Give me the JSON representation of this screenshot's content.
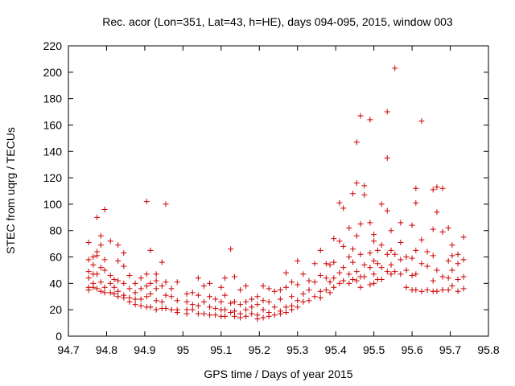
{
  "chart_data": {
    "type": "scatter",
    "title": "Rec. acor (Lon=351, Lat=43, h=HE), days 094-095, 2015, window 003",
    "xlabel": "GPS time / Days of year 2015",
    "ylabel": "STEC from uqrg / TECUs",
    "xlim": [
      94.7,
      95.8
    ],
    "ylim": [
      0,
      220
    ],
    "xticks": [
      "94.7",
      "94.8",
      "94.9",
      "95",
      "95.1",
      "95.2",
      "95.3",
      "95.4",
      "95.5",
      "95.6",
      "95.7",
      "95.8"
    ],
    "yticks": [
      "0",
      "20",
      "40",
      "60",
      "80",
      "100",
      "120",
      "140",
      "160",
      "180",
      "200",
      "220"
    ],
    "grid": false,
    "marker": "+",
    "color": "#cc0000",
    "series": [
      {
        "points": [
          [
            94.753,
            71
          ],
          [
            94.753,
            58
          ],
          [
            94.753,
            49
          ],
          [
            94.753,
            44
          ],
          [
            94.753,
            37
          ],
          [
            94.753,
            35
          ],
          [
            94.765,
            60
          ],
          [
            94.765,
            54
          ],
          [
            94.765,
            47
          ],
          [
            94.765,
            40
          ],
          [
            94.765,
            37
          ],
          [
            94.775,
            90
          ],
          [
            94.775,
            64
          ],
          [
            94.775,
            61
          ],
          [
            94.775,
            47
          ],
          [
            94.775,
            36
          ],
          [
            94.785,
            76
          ],
          [
            94.785,
            69
          ],
          [
            94.785,
            52
          ],
          [
            94.785,
            41
          ],
          [
            94.785,
            34
          ],
          [
            94.795,
            96
          ],
          [
            94.795,
            58
          ],
          [
            94.795,
            50
          ],
          [
            94.795,
            37
          ],
          [
            94.795,
            33
          ],
          [
            94.81,
            72
          ],
          [
            94.81,
            46
          ],
          [
            94.81,
            40
          ],
          [
            94.81,
            33
          ],
          [
            94.82,
            43
          ],
          [
            94.82,
            37
          ],
          [
            94.82,
            32
          ],
          [
            94.83,
            69
          ],
          [
            94.83,
            57
          ],
          [
            94.83,
            42
          ],
          [
            94.83,
            34
          ],
          [
            94.83,
            30
          ],
          [
            94.845,
            63
          ],
          [
            94.845,
            53
          ],
          [
            94.845,
            40
          ],
          [
            94.845,
            31
          ],
          [
            94.845,
            29
          ],
          [
            94.86,
            46
          ],
          [
            94.86,
            36
          ],
          [
            94.86,
            29
          ],
          [
            94.86,
            26
          ],
          [
            94.875,
            40
          ],
          [
            94.875,
            33
          ],
          [
            94.875,
            28
          ],
          [
            94.875,
            24
          ],
          [
            94.89,
            44
          ],
          [
            94.89,
            36
          ],
          [
            94.89,
            28
          ],
          [
            94.89,
            23
          ],
          [
            94.905,
            102
          ],
          [
            94.905,
            47
          ],
          [
            94.905,
            38
          ],
          [
            94.905,
            30
          ],
          [
            94.905,
            22
          ],
          [
            94.915,
            65
          ],
          [
            94.915,
            40
          ],
          [
            94.915,
            32
          ],
          [
            94.915,
            22
          ],
          [
            94.93,
            47
          ],
          [
            94.93,
            42
          ],
          [
            94.93,
            36
          ],
          [
            94.93,
            27
          ],
          [
            94.93,
            20
          ],
          [
            94.945,
            56
          ],
          [
            94.945,
            38
          ],
          [
            94.945,
            26
          ],
          [
            94.945,
            21
          ],
          [
            94.955,
            100
          ],
          [
            94.955,
            41
          ],
          [
            94.955,
            31
          ],
          [
            94.955,
            21
          ],
          [
            94.97,
            36
          ],
          [
            94.97,
            30
          ],
          [
            94.97,
            20
          ],
          [
            94.985,
            41
          ],
          [
            94.985,
            27
          ],
          [
            94.985,
            20
          ],
          [
            94.985,
            18
          ],
          [
            95.01,
            32
          ],
          [
            95.01,
            26
          ],
          [
            95.01,
            20
          ],
          [
            95.01,
            17
          ],
          [
            95.025,
            33
          ],
          [
            95.025,
            24
          ],
          [
            95.025,
            20
          ],
          [
            95.04,
            44
          ],
          [
            95.04,
            31
          ],
          [
            95.04,
            23
          ],
          [
            95.04,
            17
          ],
          [
            95.055,
            38
          ],
          [
            95.055,
            26
          ],
          [
            95.055,
            17
          ],
          [
            95.07,
            40
          ],
          [
            95.07,
            30
          ],
          [
            95.07,
            22
          ],
          [
            95.07,
            16
          ],
          [
            95.085,
            28
          ],
          [
            95.085,
            21
          ],
          [
            95.085,
            16
          ],
          [
            95.1,
            37
          ],
          [
            95.1,
            26
          ],
          [
            95.1,
            20
          ],
          [
            95.1,
            15
          ],
          [
            95.11,
            44
          ],
          [
            95.11,
            31
          ],
          [
            95.11,
            20
          ],
          [
            95.11,
            15
          ],
          [
            95.125,
            66
          ],
          [
            95.125,
            25
          ],
          [
            95.125,
            18
          ],
          [
            95.135,
            45
          ],
          [
            95.135,
            26
          ],
          [
            95.135,
            19
          ],
          [
            95.135,
            15
          ],
          [
            95.15,
            35
          ],
          [
            95.15,
            24
          ],
          [
            95.15,
            17
          ],
          [
            95.15,
            14
          ],
          [
            95.165,
            38
          ],
          [
            95.165,
            26
          ],
          [
            95.165,
            20
          ],
          [
            95.165,
            15
          ],
          [
            95.18,
            28
          ],
          [
            95.18,
            22
          ],
          [
            95.18,
            17
          ],
          [
            95.195,
            30
          ],
          [
            95.195,
            24
          ],
          [
            95.195,
            16
          ],
          [
            95.195,
            13
          ],
          [
            95.21,
            38
          ],
          [
            95.21,
            27
          ],
          [
            95.21,
            20
          ],
          [
            95.21,
            14
          ],
          [
            95.225,
            36
          ],
          [
            95.225,
            26
          ],
          [
            95.225,
            18
          ],
          [
            95.225,
            15
          ],
          [
            95.24,
            34
          ],
          [
            95.24,
            22
          ],
          [
            95.24,
            16
          ],
          [
            95.255,
            35
          ],
          [
            95.255,
            28
          ],
          [
            95.255,
            19
          ],
          [
            95.255,
            17
          ],
          [
            95.27,
            48
          ],
          [
            95.27,
            37
          ],
          [
            95.27,
            22
          ],
          [
            95.27,
            18
          ],
          [
            95.285,
            41
          ],
          [
            95.285,
            30
          ],
          [
            95.285,
            23
          ],
          [
            95.285,
            20
          ],
          [
            95.3,
            57
          ],
          [
            95.3,
            39
          ],
          [
            95.3,
            27
          ],
          [
            95.3,
            22
          ],
          [
            95.315,
            47
          ],
          [
            95.315,
            32
          ],
          [
            95.315,
            26
          ],
          [
            95.33,
            42
          ],
          [
            95.33,
            35
          ],
          [
            95.33,
            27
          ],
          [
            95.345,
            55
          ],
          [
            95.345,
            41
          ],
          [
            95.345,
            30
          ],
          [
            95.36,
            65
          ],
          [
            95.36,
            46
          ],
          [
            95.36,
            34
          ],
          [
            95.36,
            29
          ],
          [
            95.375,
            55
          ],
          [
            95.375,
            44
          ],
          [
            95.375,
            35
          ],
          [
            95.385,
            54
          ],
          [
            95.385,
            41
          ],
          [
            95.385,
            33
          ],
          [
            95.395,
            74
          ],
          [
            95.395,
            56
          ],
          [
            95.395,
            44
          ],
          [
            95.395,
            37
          ],
          [
            95.41,
            101
          ],
          [
            95.41,
            72
          ],
          [
            95.41,
            48
          ],
          [
            95.41,
            40
          ],
          [
            95.42,
            97
          ],
          [
            95.42,
            68
          ],
          [
            95.42,
            52
          ],
          [
            95.42,
            42
          ],
          [
            95.435,
            82
          ],
          [
            95.435,
            60
          ],
          [
            95.435,
            47
          ],
          [
            95.435,
            40
          ],
          [
            95.445,
            108
          ],
          [
            95.445,
            66
          ],
          [
            95.445,
            56
          ],
          [
            95.445,
            43
          ],
          [
            95.455,
            147
          ],
          [
            95.455,
            116
          ],
          [
            95.455,
            76
          ],
          [
            95.455,
            49
          ],
          [
            95.455,
            42
          ],
          [
            95.465,
            167
          ],
          [
            95.465,
            85
          ],
          [
            95.465,
            62
          ],
          [
            95.465,
            45
          ],
          [
            95.465,
            37
          ],
          [
            95.475,
            114
          ],
          [
            95.475,
            107
          ],
          [
            95.475,
            54
          ],
          [
            95.475,
            45
          ],
          [
            95.49,
            164
          ],
          [
            95.49,
            86
          ],
          [
            95.49,
            63
          ],
          [
            95.49,
            52
          ],
          [
            95.49,
            39
          ],
          [
            95.5,
            77
          ],
          [
            95.5,
            72
          ],
          [
            95.5,
            57
          ],
          [
            95.5,
            47
          ],
          [
            95.5,
            40
          ],
          [
            95.51,
            65
          ],
          [
            95.51,
            55
          ],
          [
            95.51,
            43
          ],
          [
            95.52,
            100
          ],
          [
            95.52,
            69
          ],
          [
            95.52,
            52
          ],
          [
            95.52,
            43
          ],
          [
            95.535,
            170
          ],
          [
            95.535,
            135
          ],
          [
            95.535,
            95
          ],
          [
            95.535,
            62
          ],
          [
            95.535,
            49
          ],
          [
            95.545,
            80
          ],
          [
            95.545,
            65
          ],
          [
            95.545,
            54
          ],
          [
            95.545,
            47
          ],
          [
            95.555,
            203
          ],
          [
            95.555,
            62
          ],
          [
            95.555,
            49
          ],
          [
            95.57,
            86
          ],
          [
            95.57,
            71
          ],
          [
            95.57,
            58
          ],
          [
            95.57,
            47
          ],
          [
            95.585,
            60
          ],
          [
            95.585,
            50
          ],
          [
            95.585,
            37
          ],
          [
            95.6,
            84
          ],
          [
            95.6,
            59
          ],
          [
            95.6,
            46
          ],
          [
            95.6,
            35
          ],
          [
            95.61,
            112
          ],
          [
            95.61,
            101
          ],
          [
            95.61,
            65
          ],
          [
            95.61,
            47
          ],
          [
            95.61,
            35
          ],
          [
            95.625,
            163
          ],
          [
            95.625,
            73
          ],
          [
            95.625,
            55
          ],
          [
            95.625,
            34
          ],
          [
            95.64,
            64
          ],
          [
            95.64,
            53
          ],
          [
            95.64,
            35
          ],
          [
            95.655,
            111
          ],
          [
            95.655,
            81
          ],
          [
            95.655,
            61
          ],
          [
            95.655,
            42
          ],
          [
            95.655,
            34
          ],
          [
            95.665,
            113
          ],
          [
            95.665,
            94
          ],
          [
            95.665,
            50
          ],
          [
            95.665,
            34
          ],
          [
            95.68,
            112
          ],
          [
            95.68,
            79
          ],
          [
            95.68,
            45
          ],
          [
            95.68,
            35
          ],
          [
            95.695,
            82
          ],
          [
            95.695,
            57
          ],
          [
            95.695,
            44
          ],
          [
            95.695,
            35
          ],
          [
            95.705,
            69
          ],
          [
            95.705,
            61
          ],
          [
            95.705,
            50
          ],
          [
            95.705,
            38
          ],
          [
            95.72,
            62
          ],
          [
            95.72,
            55
          ],
          [
            95.72,
            43
          ],
          [
            95.72,
            34
          ],
          [
            95.735,
            75
          ],
          [
            95.735,
            58
          ],
          [
            95.735,
            45
          ],
          [
            95.735,
            36
          ]
        ]
      }
    ]
  }
}
